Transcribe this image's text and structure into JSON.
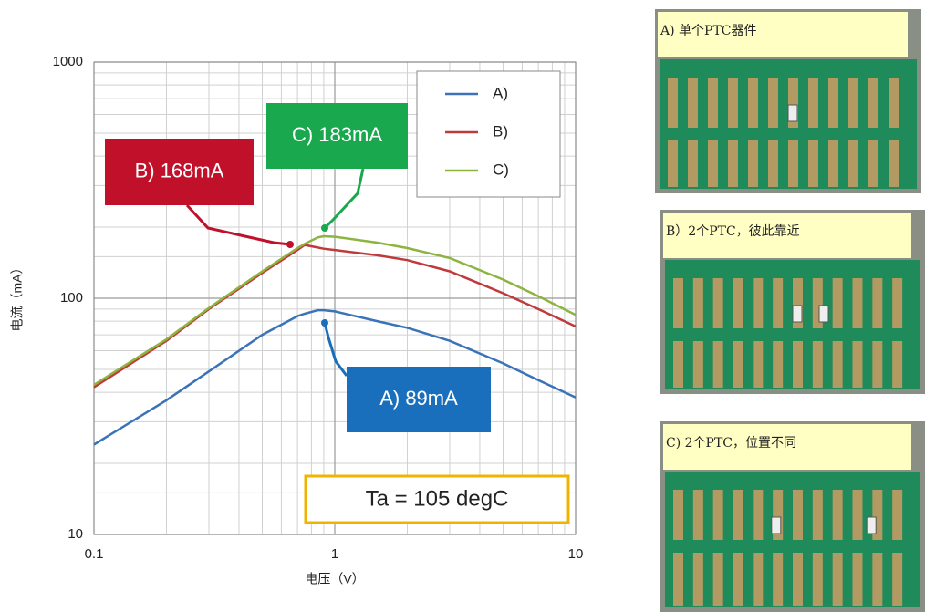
{
  "chart_data": {
    "type": "line",
    "log_x": true,
    "log_y": true,
    "grid": true,
    "xlabel": "电压（V）",
    "ylabel": "电流（mA）",
    "x": [
      0.1,
      0.2,
      0.3,
      0.5,
      0.7,
      0.75,
      0.85,
      0.9,
      1,
      1.5,
      2,
      3,
      5,
      7,
      10
    ],
    "series": [
      {
        "name": "A)",
        "color": "#3a73b8",
        "values": [
          24,
          37,
          49,
          70,
          84,
          86,
          89,
          89,
          88,
          80,
          75,
          66,
          53,
          45,
          38
        ]
      },
      {
        "name": "B)",
        "color": "#c0393b",
        "values": [
          42,
          66,
          90,
          128,
          160,
          168,
          164,
          162,
          160,
          152,
          145,
          130,
          105,
          90,
          76
        ]
      },
      {
        "name": "C)",
        "color": "#8db43e",
        "values": [
          43,
          67,
          91,
          130,
          163,
          170,
          181,
          183,
          182,
          172,
          163,
          148,
          120,
          102,
          85
        ]
      }
    ],
    "xlim": [
      0.1,
      10
    ],
    "xticks": [
      0.1,
      1,
      10
    ],
    "ylim": [
      10,
      1000
    ],
    "yticks": [
      10,
      100,
      1000
    ],
    "annotations": [
      {
        "text": "B) 168mA",
        "color": "#c0102a"
      },
      {
        "text": "C) 183mA",
        "color": "#1aa84f"
      },
      {
        "text": "A) 89mA",
        "color": "#1a6fbd"
      }
    ],
    "condition": "Ta = 105 degC"
  },
  "photos": [
    {
      "caption": "A) 单个PTC器件"
    },
    {
      "caption": "B）2个PTC，彼此靠近"
    },
    {
      "caption": "C) 2个PTC，位置不同"
    }
  ]
}
